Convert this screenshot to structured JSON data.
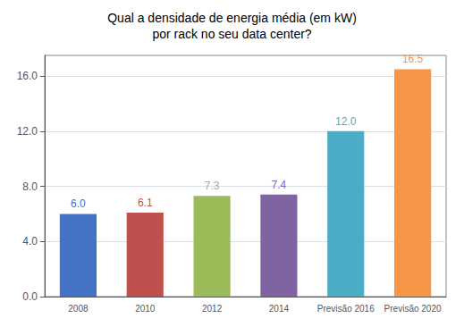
{
  "chart_data": {
    "type": "bar",
    "title": "Qual a densidade de energia média (em kW)\npor rack no seu data center?",
    "categories": [
      "2008",
      "2010",
      "2012",
      "2014",
      "Previsão 2016",
      "Previsão 2020"
    ],
    "values": [
      6.0,
      6.1,
      7.3,
      7.4,
      12.0,
      16.5
    ],
    "value_labels": [
      "6.0",
      "6.1",
      "7.3",
      "7.4",
      "12.0",
      "16.5"
    ],
    "colors": [
      "#4472c4",
      "#c0504d",
      "#9bbb59",
      "#8064a2",
      "#4bacc6",
      "#f79646"
    ],
    "ylim": [
      0,
      17.5
    ],
    "yticks": [
      {
        "value": 0,
        "label": "0.0"
      },
      {
        "value": 4,
        "label": "4.0"
      },
      {
        "value": 8,
        "label": "8.0"
      },
      {
        "value": 12,
        "label": "12.0"
      },
      {
        "value": 16,
        "label": "16.0"
      }
    ],
    "grid": true,
    "data_labels": true
  }
}
